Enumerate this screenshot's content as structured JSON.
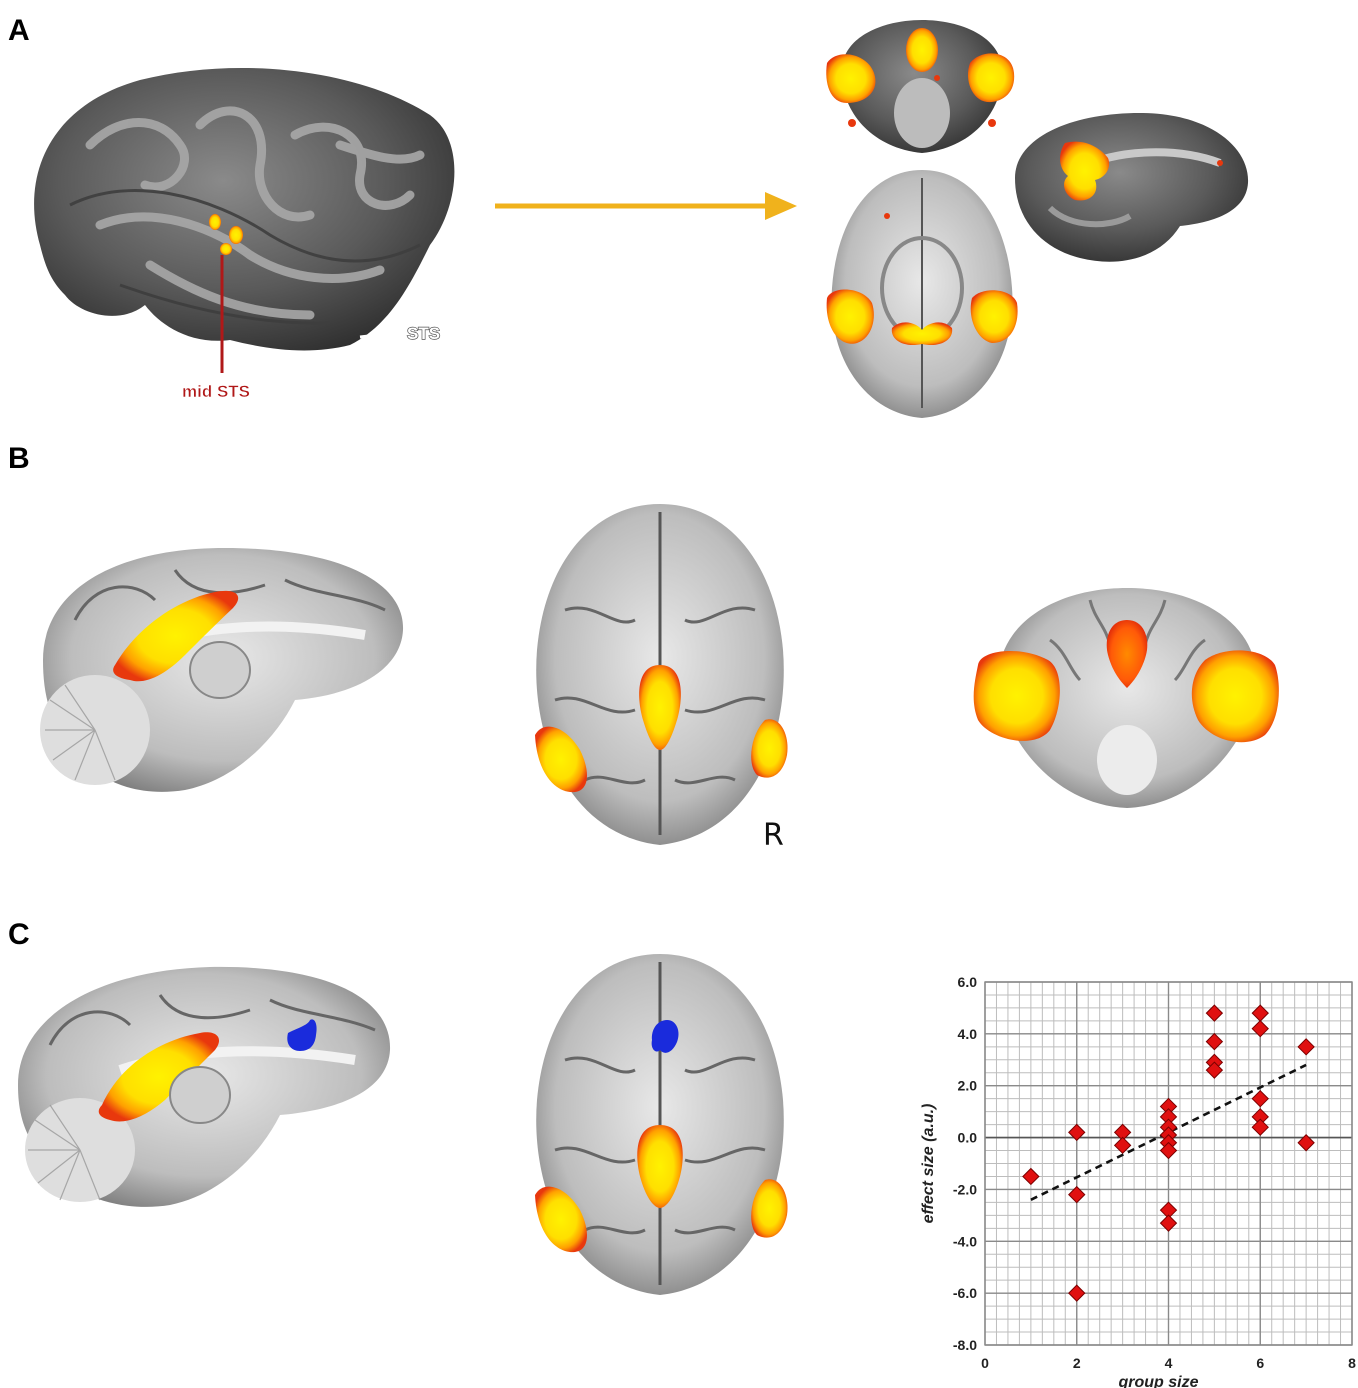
{
  "panels": {
    "a": {
      "label": "A",
      "mid_sts": "mid STS",
      "sts": "STS"
    },
    "b": {
      "label": "B",
      "r": "R"
    },
    "c": {
      "label": "C"
    }
  },
  "colors": {
    "activation_hot": "#ffe600",
    "activation_warm": "#ff9900",
    "activation_edge": "#e8380d",
    "deactivation": "#1a2bdc",
    "arrow": "#f0b21c",
    "mid_sts_line": "#b01818",
    "marker": "#e01010"
  },
  "chart_data": {
    "type": "scatter",
    "title": "",
    "xlabel": "group size",
    "ylabel": "effect size (a.u.)",
    "xlim": [
      0,
      8
    ],
    "ylim": [
      -8.0,
      6.0
    ],
    "x_ticks": [
      "0",
      "2",
      "4",
      "6",
      "8"
    ],
    "y_ticks": [
      "6.0",
      "4.0",
      "2.0",
      "0.0",
      "-2.0",
      "-4.0",
      "-6.0",
      "-8.0"
    ],
    "grid": true,
    "points": [
      [
        1,
        -1.5
      ],
      [
        2,
        0.2
      ],
      [
        2,
        -2.2
      ],
      [
        2,
        -6.0
      ],
      [
        3,
        0.2
      ],
      [
        3,
        -0.3
      ],
      [
        4,
        1.2
      ],
      [
        4,
        0.8
      ],
      [
        4,
        0.4
      ],
      [
        4,
        0.1
      ],
      [
        4,
        -0.2
      ],
      [
        4,
        -0.5
      ],
      [
        4,
        -2.8
      ],
      [
        4,
        -3.3
      ],
      [
        5,
        4.8
      ],
      [
        5,
        3.7
      ],
      [
        5,
        2.9
      ],
      [
        5,
        2.6
      ],
      [
        6,
        4.8
      ],
      [
        6,
        4.2
      ],
      [
        6,
        1.5
      ],
      [
        6,
        0.8
      ],
      [
        6,
        0.4
      ],
      [
        7,
        3.5
      ],
      [
        7,
        -0.2
      ]
    ],
    "trendline": {
      "style": "dashed",
      "from": [
        1,
        -2.4
      ],
      "to": [
        7,
        2.8
      ]
    }
  }
}
